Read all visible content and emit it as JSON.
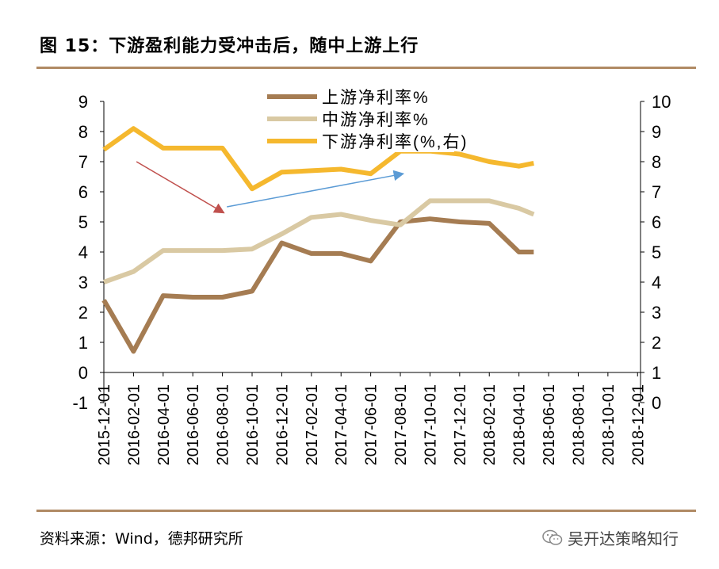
{
  "title": "图 15：下游盈利能力受冲击后，随中上游上行",
  "source": "资料来源：Wind，德邦研究所",
  "watermark": {
    "text": "吴开达策略知行",
    "icon": "wechat-icon"
  },
  "chart_data": {
    "type": "line",
    "title": "图 15：下游盈利能力受冲击后，随中上游上行",
    "x": [
      "2015-12-01",
      "2016-02-01",
      "2016-04-01",
      "2016-06-01",
      "2016-08-01",
      "2016-10-01",
      "2016-12-01",
      "2017-02-01",
      "2017-04-01",
      "2017-06-01",
      "2017-08-01",
      "2017-10-01",
      "2017-12-01",
      "2018-02-01",
      "2018-04-01",
      "2018-06-01",
      "2018-08-01",
      "2018-10-01",
      "2018-12-01"
    ],
    "x_tick_labels": [
      "2015-12-01",
      "2016-02-01",
      "2016-04-01",
      "2016-06-01",
      "2016-08-01",
      "2016-10-01",
      "2016-12-01",
      "2017-02-01",
      "2017-04-01",
      "2017-06-01",
      "2017-08-01",
      "2017-10-01",
      "2017-12-01",
      "2018-02-01",
      "2018-04-01",
      "2018-06-01",
      "2018-08-01",
      "2018-10-01",
      "2018-12-01"
    ],
    "x_month_index": [
      0,
      2,
      4,
      6,
      8,
      10,
      12,
      14,
      16,
      18,
      20,
      22,
      24,
      26,
      28,
      30,
      32,
      34,
      36
    ],
    "series": [
      {
        "name": "上游净利率%",
        "axis": "left",
        "color": "#a57c52",
        "points": [
          [
            0,
            2.4
          ],
          [
            2,
            0.7
          ],
          [
            4,
            2.55
          ],
          [
            6,
            2.5
          ],
          [
            8,
            2.5
          ],
          [
            10,
            2.7
          ],
          [
            12,
            4.3
          ],
          [
            14,
            3.95
          ],
          [
            16,
            3.95
          ],
          [
            18,
            3.7
          ],
          [
            20,
            5.0
          ],
          [
            22,
            5.1
          ],
          [
            24,
            5.0
          ],
          [
            26,
            4.95
          ],
          [
            28,
            4.0
          ],
          [
            29,
            4.0
          ]
        ]
      },
      {
        "name": "中游净利率%",
        "axis": "left",
        "color": "#d9c9a3",
        "points": [
          [
            0,
            3.0
          ],
          [
            2,
            3.35
          ],
          [
            4,
            4.05
          ],
          [
            6,
            4.05
          ],
          [
            8,
            4.05
          ],
          [
            10,
            4.1
          ],
          [
            12,
            4.6
          ],
          [
            14,
            5.15
          ],
          [
            16,
            5.25
          ],
          [
            18,
            5.05
          ],
          [
            20,
            4.9
          ],
          [
            22,
            5.7
          ],
          [
            24,
            5.7
          ],
          [
            26,
            5.7
          ],
          [
            28,
            5.45
          ],
          [
            29,
            5.25
          ]
        ]
      },
      {
        "name": "下游净利率(%,右)",
        "axis": "right",
        "color": "#f5b82e",
        "points": [
          [
            0,
            8.4
          ],
          [
            2,
            9.1
          ],
          [
            4,
            8.45
          ],
          [
            6,
            8.45
          ],
          [
            8,
            8.45
          ],
          [
            10,
            7.1
          ],
          [
            12,
            7.65
          ],
          [
            14,
            7.7
          ],
          [
            16,
            7.75
          ],
          [
            18,
            7.6
          ],
          [
            20,
            8.35
          ],
          [
            22,
            8.35
          ],
          [
            24,
            8.25
          ],
          [
            26,
            8.0
          ],
          [
            28,
            7.85
          ],
          [
            29,
            7.95
          ]
        ]
      }
    ],
    "y_left": {
      "min": -1,
      "max": 9,
      "ticks": [
        "-1",
        "0",
        "1",
        "2",
        "3",
        "4",
        "5",
        "6",
        "7",
        "8",
        "9"
      ]
    },
    "y_right": {
      "min": 0,
      "max": 10,
      "ticks": [
        "0",
        "1",
        "2",
        "3",
        "4",
        "5",
        "6",
        "7",
        "8",
        "9",
        "10"
      ]
    },
    "annotations": [
      {
        "type": "arrow",
        "color": "#c0504d",
        "from": [
          2.2,
          7.0
        ],
        "to": [
          8.1,
          5.3
        ],
        "axis": "left"
      },
      {
        "type": "arrow",
        "color": "#5b9bd5",
        "from": [
          8.3,
          5.5
        ],
        "to": [
          20.2,
          6.6
        ],
        "axis": "left"
      }
    ],
    "legend": {
      "placement": "top-center",
      "entries": [
        "上游净利率%",
        "中游净利率%",
        "下游净利率(%,右)"
      ]
    }
  }
}
